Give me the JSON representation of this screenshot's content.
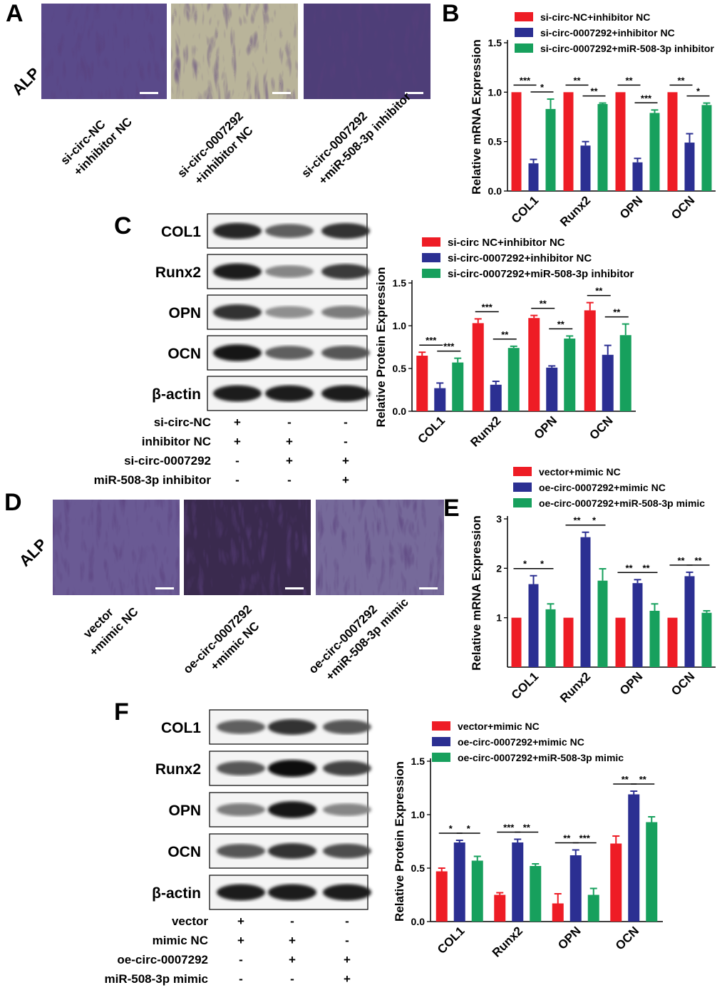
{
  "panel_labels": {
    "A": "A",
    "B": "B",
    "C": "C",
    "D": "D",
    "E": "E",
    "F": "F"
  },
  "stain_label": "ALP",
  "panel_A": {
    "captions": [
      [
        "si-circ-NC",
        "+inhibitor NC"
      ],
      [
        "si-circ-0007292",
        "+inhibitor NC"
      ],
      [
        "si-circ-0007292",
        "+miR-508-3p inhibitor"
      ]
    ],
    "image_tints": [
      "#5a4a8a",
      "#b9b49a",
      "#4e3e78"
    ]
  },
  "panel_D": {
    "captions": [
      [
        "vector",
        "+mimic NC"
      ],
      [
        "oe-circ-0007292",
        "+mimic NC"
      ],
      [
        "oe-circ-0007292",
        "+miR-508-3p mimic"
      ]
    ],
    "image_tints": [
      "#6a5a94",
      "#3a2a4e",
      "#766a9a"
    ]
  },
  "colors": {
    "red": "#ee1c25",
    "blue": "#2b2f92",
    "green": "#17a05d"
  },
  "blot_C": {
    "proteins": [
      "COL1",
      "Runx2",
      "OPN",
      "OCN",
      "β-actin"
    ],
    "band_strength": [
      [
        0.85,
        0.55,
        0.8
      ],
      [
        0.9,
        0.35,
        0.75
      ],
      [
        0.8,
        0.3,
        0.4
      ],
      [
        0.95,
        0.55,
        0.6
      ],
      [
        0.9,
        0.9,
        0.9
      ]
    ],
    "conditions": [
      {
        "label": "si-circ-NC",
        "signs": [
          "+",
          "-",
          "-"
        ]
      },
      {
        "label": "inhibitor NC",
        "signs": [
          "+",
          "+",
          "-"
        ]
      },
      {
        "label": "si-circ-0007292",
        "signs": [
          "-",
          "+",
          "+"
        ]
      },
      {
        "label": "miR-508-3p inhibitor",
        "signs": [
          "-",
          "-",
          "+"
        ]
      }
    ]
  },
  "blot_F": {
    "proteins": [
      "COL1",
      "Runx2",
      "OPN",
      "OCN",
      "β-actin"
    ],
    "band_strength": [
      [
        0.55,
        0.8,
        0.6
      ],
      [
        0.6,
        1.0,
        0.7
      ],
      [
        0.4,
        0.95,
        0.35
      ],
      [
        0.6,
        0.8,
        0.65
      ],
      [
        0.9,
        0.9,
        0.9
      ]
    ],
    "conditions": [
      {
        "label": "vector",
        "signs": [
          "+",
          "-",
          "-"
        ]
      },
      {
        "label": "mimic NC",
        "signs": [
          "+",
          "+",
          "-"
        ]
      },
      {
        "label": "oe-circ-0007292",
        "signs": [
          "-",
          "+",
          "+"
        ]
      },
      {
        "label": "miR-508-3p mimic",
        "signs": [
          "-",
          "-",
          "+"
        ]
      }
    ]
  },
  "chart_data": [
    {
      "id": "B",
      "type": "bar",
      "categories": [
        "COL1",
        "Runx2",
        "OPN",
        "OCN"
      ],
      "series": [
        {
          "name": "si-circ-NC+inhibitor NC",
          "values": [
            1.0,
            1.0,
            1.0,
            1.0
          ],
          "errors": [
            0,
            0,
            0,
            0
          ]
        },
        {
          "name": "si-circ-0007292+inhibitor NC",
          "values": [
            0.28,
            0.46,
            0.29,
            0.49
          ],
          "errors": [
            0.04,
            0.04,
            0.04,
            0.09
          ]
        },
        {
          "name": "si-circ-0007292+miR-508-3p inhibitor",
          "values": [
            0.83,
            0.88,
            0.79,
            0.87
          ],
          "errors": [
            0.1,
            0.01,
            0.03,
            0.02
          ]
        }
      ],
      "significance": [
        [
          "***",
          "*"
        ],
        [
          "**",
          "**"
        ],
        [
          "**",
          "***"
        ],
        [
          "**",
          "*"
        ]
      ],
      "ylabel": "Relative mRNA Expression",
      "ylim": [
        0,
        1.5
      ],
      "yticks": [
        "0.0",
        "0.5",
        "1.0",
        "1.5"
      ],
      "legend": "top"
    },
    {
      "id": "C",
      "type": "bar",
      "categories": [
        "COL1",
        "Runx2",
        "OPN",
        "OCN"
      ],
      "series": [
        {
          "name": "si-circ NC+inhibitor NC",
          "values": [
            0.65,
            1.03,
            1.09,
            1.18
          ],
          "errors": [
            0.04,
            0.05,
            0.03,
            0.09
          ]
        },
        {
          "name": "si-circ-0007292+inhibitor NC",
          "values": [
            0.27,
            0.31,
            0.51,
            0.66
          ],
          "errors": [
            0.06,
            0.04,
            0.02,
            0.11
          ]
        },
        {
          "name": "si-circ-0007292+miR-508-3p inhibitor",
          "values": [
            0.57,
            0.74,
            0.85,
            0.89
          ],
          "errors": [
            0.05,
            0.02,
            0.03,
            0.13
          ]
        }
      ],
      "significance": [
        [
          "***",
          "***"
        ],
        [
          "***",
          "**"
        ],
        [
          "**",
          "**"
        ],
        [
          "**",
          "**"
        ]
      ],
      "ylabel": "Relative Protein Expression",
      "ylim": [
        0,
        1.5
      ],
      "yticks": [
        "0.0",
        "0.5",
        "1.0",
        "1.5"
      ],
      "legend": "top"
    },
    {
      "id": "E",
      "type": "bar",
      "categories": [
        "COL1",
        "Runx2",
        "OPN",
        "OCN"
      ],
      "series": [
        {
          "name": "vector+mimic NC",
          "values": [
            1.0,
            1.0,
            1.0,
            1.0
          ],
          "errors": [
            0,
            0,
            0,
            0
          ]
        },
        {
          "name": "oe-circ-0007292+mimic NC",
          "values": [
            1.68,
            2.63,
            1.7,
            1.84
          ],
          "errors": [
            0.17,
            0.1,
            0.07,
            0.08
          ]
        },
        {
          "name": "oe-circ-0007292+miR-508-3p mimic",
          "values": [
            1.17,
            1.75,
            1.14,
            1.1
          ],
          "errors": [
            0.11,
            0.24,
            0.14,
            0.04
          ]
        }
      ],
      "significance": [
        [
          "*",
          "*"
        ],
        [
          "**",
          "*"
        ],
        [
          "**",
          "**"
        ],
        [
          "**",
          "**"
        ]
      ],
      "ylabel": "Relative mRNA Expression",
      "ylim": [
        0,
        3
      ],
      "ybaseline": 0,
      "yticks": [
        "1",
        "2",
        "3"
      ],
      "legend": "top"
    },
    {
      "id": "F",
      "type": "bar",
      "categories": [
        "COL1",
        "Runx2",
        "OPN",
        "OCN"
      ],
      "series": [
        {
          "name": "vector+mimic NC",
          "values": [
            0.47,
            0.25,
            0.17,
            0.73
          ],
          "errors": [
            0.03,
            0.02,
            0.09,
            0.07
          ]
        },
        {
          "name": "oe-circ-0007292+mimic NC",
          "values": [
            0.74,
            0.74,
            0.62,
            1.19
          ],
          "errors": [
            0.02,
            0.03,
            0.05,
            0.03
          ]
        },
        {
          "name": "oe-circ-0007292+miR-508-3p mimic",
          "values": [
            0.57,
            0.52,
            0.25,
            0.93
          ],
          "errors": [
            0.04,
            0.02,
            0.06,
            0.05
          ]
        }
      ],
      "significance": [
        [
          "*",
          "*"
        ],
        [
          "***",
          "**"
        ],
        [
          "**",
          "***"
        ],
        [
          "**",
          "**"
        ]
      ],
      "ylabel": "Relative Protein Expression",
      "ylim": [
        0,
        1.5
      ],
      "yticks": [
        "0.0",
        "0.5",
        "1.0",
        "1.5"
      ],
      "legend": "top"
    }
  ]
}
